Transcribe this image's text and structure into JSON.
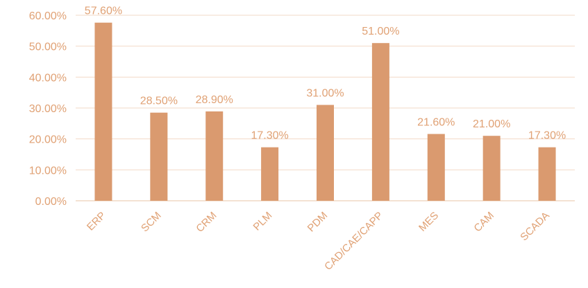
{
  "chart_data": {
    "type": "bar",
    "categories": [
      "ERP",
      "SCM",
      "CRM",
      "PLM",
      "PDM",
      "CAD/CAE/CAPP",
      "MES",
      "CAM",
      "SCADA"
    ],
    "values": [
      57.6,
      28.5,
      28.9,
      17.3,
      31.0,
      51.0,
      21.6,
      21.0,
      17.3
    ],
    "data_labels": [
      "57.60%",
      "28.50%",
      "28.90%",
      "17.30%",
      "31.00%",
      "51.00%",
      "21.60%",
      "21.00%",
      "17.30%"
    ],
    "y_ticks": [
      "0.00%",
      "10.00%",
      "20.00%",
      "30.00%",
      "40.00%",
      "50.00%",
      "60.00%"
    ],
    "ylim": [
      0,
      60
    ],
    "title": "",
    "xlabel": "",
    "ylabel": "",
    "grid": true,
    "legend": "none",
    "colors": {
      "bar": "#DA9A6F",
      "text": "#E0A174",
      "grid": "#F2D9C7",
      "axis": "#EAC4A6"
    }
  }
}
